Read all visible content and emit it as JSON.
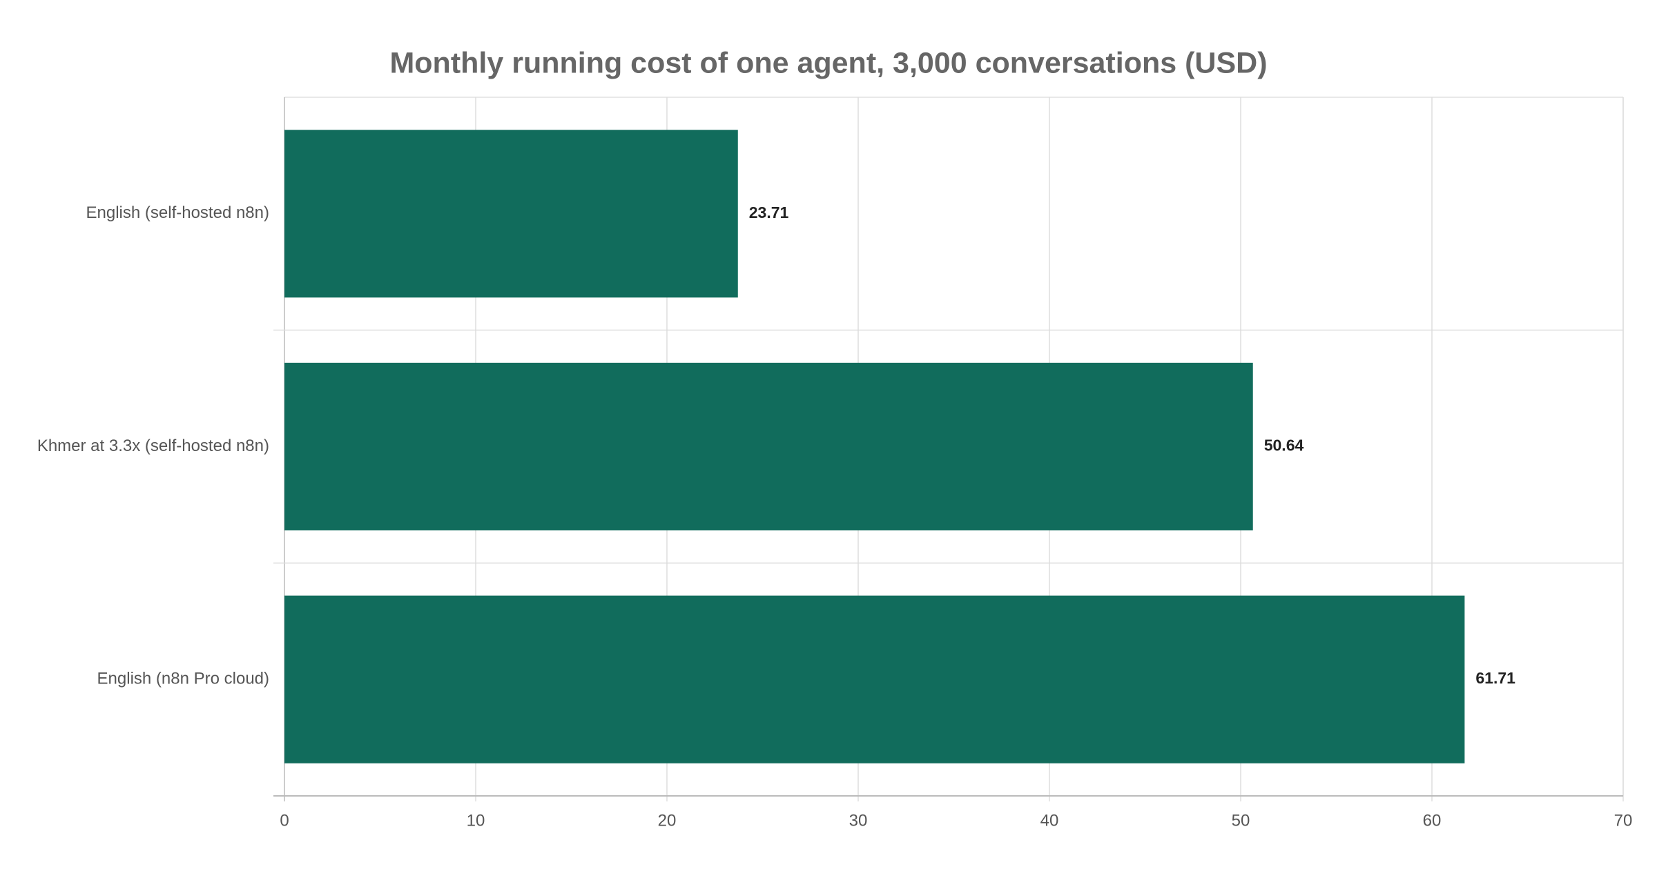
{
  "chart_data": {
    "type": "bar",
    "orientation": "horizontal",
    "title": "Monthly running cost of one agent, 3,000 conversations (USD)",
    "categories": [
      "English (self-hosted n8n)",
      "Khmer at 3.3x (self-hosted n8n)",
      "English (n8n Pro cloud)"
    ],
    "values": [
      23.71,
      50.64,
      61.71
    ],
    "color": "#116c5c",
    "xlim": [
      0,
      70
    ],
    "xticks": [
      0,
      10,
      20,
      30,
      40,
      50,
      60,
      70
    ],
    "grid": true
  }
}
